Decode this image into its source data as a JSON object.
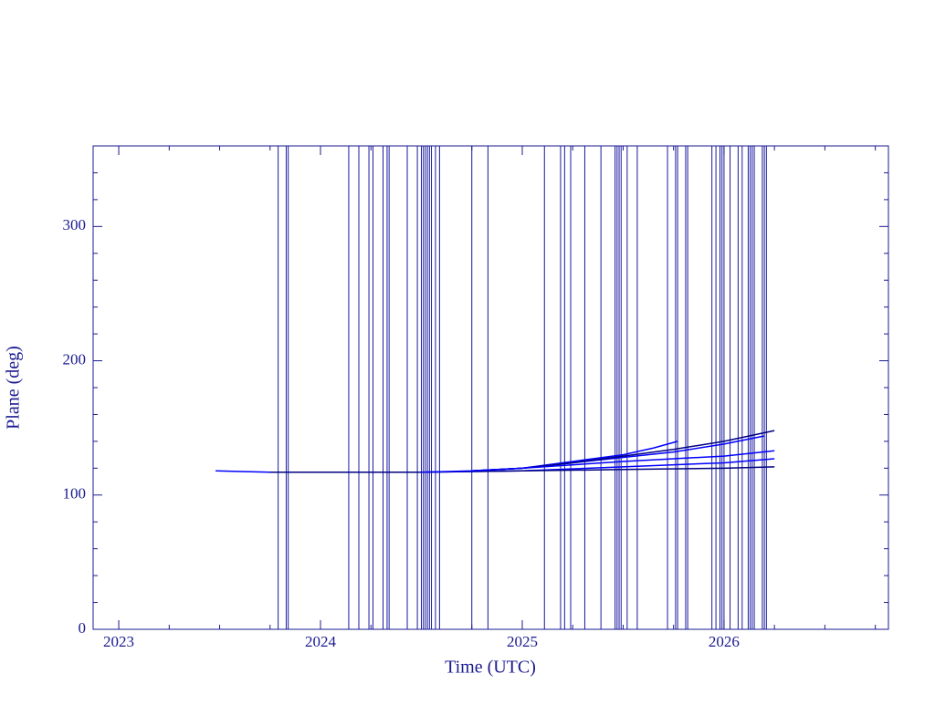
{
  "chart_data": {
    "type": "line",
    "xlabel": "Time (UTC)",
    "ylabel": "Plane (deg)",
    "xlim": [
      2022.873,
      2026.815
    ],
    "xticks": [
      2023,
      2024,
      2025,
      2026
    ],
    "xminorticks": [
      2023.25,
      2023.5,
      2023.75,
      2024.25,
      2024.5,
      2024.75,
      2025.25,
      2025.5,
      2025.75,
      2026.25,
      2026.5,
      2026.75
    ],
    "ylim": [
      0,
      360
    ],
    "yticks": [
      0,
      100,
      200,
      300
    ],
    "yminorticks": [
      20,
      40,
      60,
      80,
      120,
      140,
      160,
      180,
      220,
      240,
      260,
      280,
      320,
      340
    ],
    "frame_color": "#1a1a90",
    "vline_color": "#1a1aa0",
    "vlines": [
      2023.79,
      2023.83,
      2023.84,
      2024.14,
      2024.19,
      2024.24,
      2024.26,
      2024.31,
      2024.33,
      2024.34,
      2024.43,
      2024.48,
      2024.5,
      2024.51,
      2024.52,
      2024.53,
      2024.54,
      2024.55,
      2024.57,
      2024.59,
      2024.75,
      2024.83,
      2025.11,
      2025.19,
      2025.21,
      2025.24,
      2025.31,
      2025.39,
      2025.46,
      2025.47,
      2025.48,
      2025.49,
      2025.52,
      2025.57,
      2025.72,
      2025.76,
      2025.77,
      2025.81,
      2025.82,
      2025.94,
      2025.96,
      2025.98,
      2025.99,
      2026.0,
      2026.03,
      2026.07,
      2026.09,
      2026.12,
      2026.13,
      2026.14,
      2026.15,
      2026.19,
      2026.2,
      2026.21
    ],
    "series": [
      {
        "color": "#0000ff",
        "x": [
          2023.48,
          2023.75,
          2024.5,
          2025.0,
          2025.5,
          2026.0,
          2026.25
        ],
        "values": [
          118,
          117,
          117,
          118,
          121,
          124,
          127
        ]
      },
      {
        "color": "#000080",
        "x": [
          2023.75,
          2024.5,
          2025.0,
          2025.5,
          2026.0,
          2026.25
        ],
        "values": [
          117,
          117,
          118,
          119,
          120,
          121
        ]
      },
      {
        "color": "#0000ff",
        "x": [
          2024.5,
          2024.75,
          2025.0,
          2025.25,
          2025.5,
          2025.65,
          2025.77
        ],
        "values": [
          117,
          118,
          120,
          125,
          130,
          135,
          140
        ]
      },
      {
        "color": "#0000ff",
        "x": [
          2024.75,
          2025.0,
          2025.25,
          2025.5,
          2025.75,
          2026.0,
          2026.2
        ],
        "values": [
          118,
          120,
          124,
          128,
          132,
          138,
          144
        ]
      },
      {
        "color": "#000080",
        "x": [
          2024.75,
          2025.0,
          2025.25,
          2025.5,
          2025.75,
          2026.0,
          2026.25
        ],
        "values": [
          118,
          120,
          124,
          129,
          134,
          140,
          148
        ]
      },
      {
        "color": "#0000ff",
        "x": [
          2024.75,
          2025.0,
          2025.5,
          2026.0,
          2026.25
        ],
        "values": [
          118,
          120,
          125,
          129,
          133
        ]
      }
    ]
  }
}
